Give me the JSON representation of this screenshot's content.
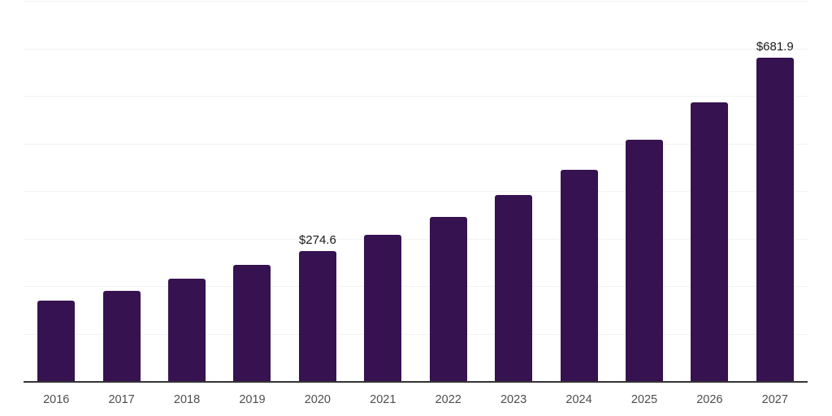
{
  "chart_data": {
    "type": "bar",
    "title": "",
    "xlabel": "",
    "ylabel": "",
    "categories": [
      "2016",
      "2017",
      "2018",
      "2019",
      "2020",
      "2021",
      "2022",
      "2023",
      "2024",
      "2025",
      "2026",
      "2027"
    ],
    "values": [
      170.4,
      192.3,
      217.4,
      246.2,
      274.6,
      308.9,
      347.5,
      393.2,
      445.6,
      509.4,
      588.0,
      681.9
    ],
    "data_labels": {
      "2020": "$274.6",
      "2027": "$681.9"
    },
    "currency_prefix": "$",
    "ylim": [
      0,
      800
    ],
    "gridline_step": 100,
    "grid": true,
    "legend": "none",
    "y_axis_tick_labels_visible": false,
    "colors": {
      "bar": "#361250",
      "gridline": "#f2f2f2",
      "axis_line": "#333333",
      "tick_label": "#4d4d4d",
      "data_label": "#1a1a1a",
      "background": "#ffffff"
    }
  }
}
